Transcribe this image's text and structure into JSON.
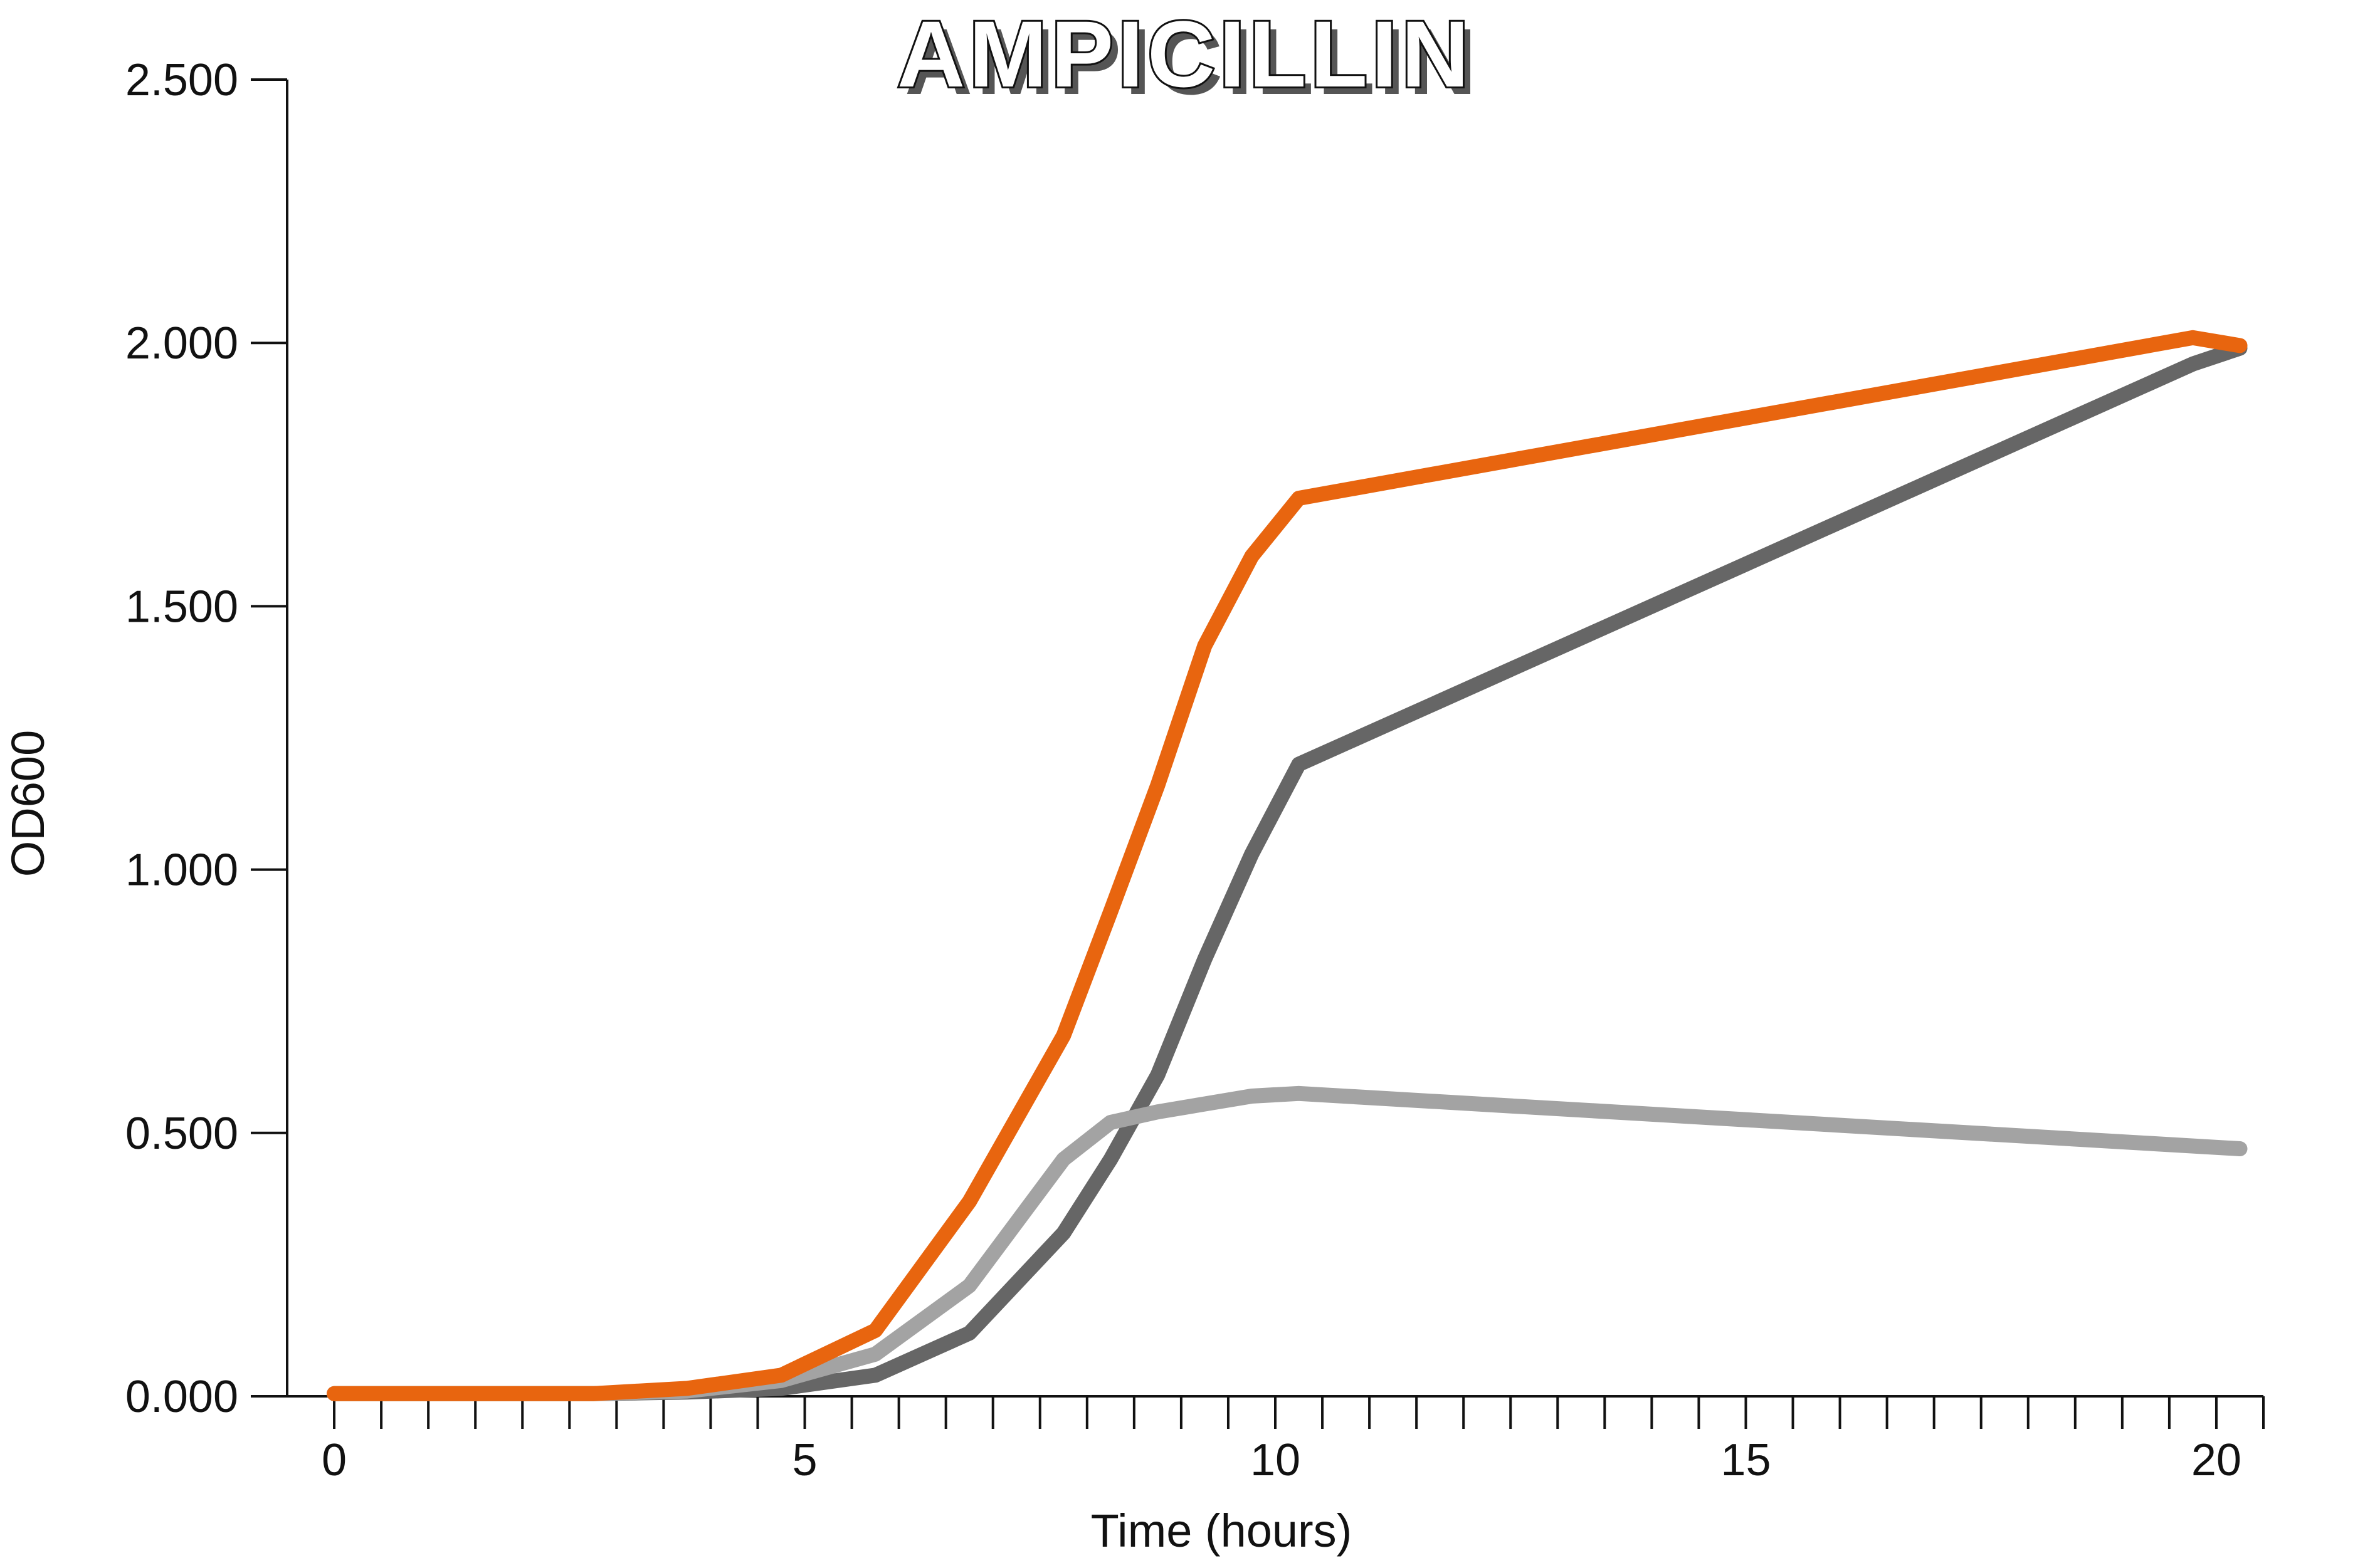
{
  "chart_data": {
    "type": "line",
    "title": "AMPICILLIN",
    "xlabel": "Time (hours)",
    "ylabel": "OD600",
    "xlim": [
      -0.5,
      20.5
    ],
    "ylim": [
      0,
      2.5
    ],
    "x_ticks": [
      0,
      5,
      10,
      15,
      20
    ],
    "x_tick_labels": [
      "0",
      "5",
      "10",
      "15",
      "20"
    ],
    "x_minor_step": 0.5,
    "y_ticks": [
      0,
      0.5,
      1.0,
      1.5,
      2.0,
      2.5
    ],
    "y_tick_labels": [
      "0.000",
      "0.500",
      "1.000",
      "1.500",
      "2.000",
      "2.500"
    ],
    "grid": false,
    "legend": "none",
    "series": [
      {
        "color": "#666666",
        "x": [
          0,
          1,
          2,
          2.75,
          3.75,
          4.75,
          5.75,
          6.75,
          7.75,
          8.25,
          8.75,
          9.25,
          9.75,
          10.25,
          19.75,
          20.25
        ],
        "y": [
          0.005,
          0.005,
          0.005,
          0.005,
          0.008,
          0.015,
          0.04,
          0.12,
          0.31,
          0.45,
          0.61,
          0.83,
          1.03,
          1.2,
          1.96,
          1.99
        ]
      },
      {
        "color": "#a3a3a3",
        "x": [
          0,
          1,
          2,
          2.75,
          3.75,
          4.75,
          5.75,
          6.75,
          7.75,
          8.25,
          8.75,
          9.25,
          9.75,
          10.25,
          20.25
        ],
        "y": [
          0.005,
          0.005,
          0.005,
          0.005,
          0.01,
          0.03,
          0.08,
          0.21,
          0.45,
          0.52,
          0.54,
          0.555,
          0.57,
          0.575,
          0.47
        ]
      },
      {
        "color": "#e8650f",
        "x": [
          0,
          1,
          2,
          2.75,
          3.75,
          4.75,
          5.75,
          6.75,
          7.75,
          8.25,
          8.75,
          9.25,
          9.75,
          10.25,
          19.75,
          20.25
        ],
        "y": [
          0.005,
          0.005,
          0.005,
          0.005,
          0.015,
          0.04,
          0.125,
          0.37,
          0.685,
          0.92,
          1.16,
          1.425,
          1.595,
          1.705,
          2.01,
          1.995
        ]
      }
    ]
  }
}
